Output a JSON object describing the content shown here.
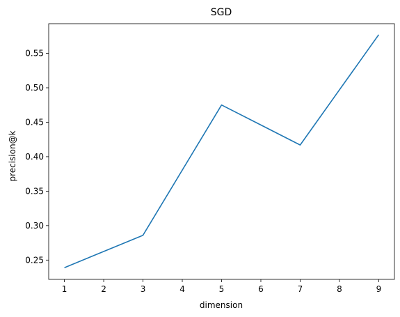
{
  "chart_data": {
    "type": "line",
    "title": "SGD",
    "xlabel": "dimension",
    "ylabel": "precision@k",
    "xlim": [
      0.6,
      9.4
    ],
    "ylim": [
      0.222,
      0.593
    ],
    "xticks": [
      1,
      2,
      3,
      4,
      5,
      6,
      7,
      8,
      9
    ],
    "yticks": [
      0.25,
      0.3,
      0.35,
      0.4,
      0.45,
      0.5,
      0.55
    ],
    "ytick_labels": [
      "0.25",
      "0.30",
      "0.35",
      "0.40",
      "0.45",
      "0.50",
      "0.55"
    ],
    "grid": false,
    "series": [
      {
        "color": "#1f77b4",
        "x": [
          1,
          3,
          5,
          7,
          9
        ],
        "y": [
          0.239,
          0.286,
          0.475,
          0.417,
          0.577
        ]
      }
    ]
  }
}
